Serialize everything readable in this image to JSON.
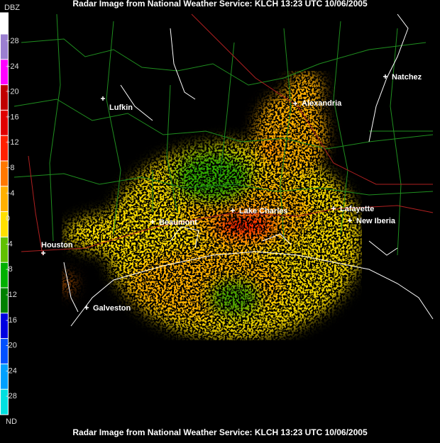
{
  "header": {
    "title": "Radar Image from National Weather Service: KLCH   13:23 UTC  10/06/2005"
  },
  "footer": {
    "title": "Radar Image from National Weather Service: KLCH   13:23 UTC  10/06/2005"
  },
  "scale": {
    "unit": "DBZ",
    "entries": [
      {
        "label": "+28",
        "color": "#9b7fd0"
      },
      {
        "label": "+24",
        "color": "#ff00ff"
      },
      {
        "label": "+20",
        "color": "#c00000"
      },
      {
        "label": "+16",
        "color": "#e00000"
      },
      {
        "label": "+12",
        "color": "#ff2000"
      },
      {
        "label": "+8",
        "color": "#ff7800"
      },
      {
        "label": "+4",
        "color": "#ffb000"
      },
      {
        "label": "0",
        "color": "#ffe000"
      },
      {
        "label": "-4",
        "color": "#60c000"
      },
      {
        "label": "-8",
        "color": "#00b000"
      },
      {
        "label": "-12",
        "color": "#008000"
      },
      {
        "label": "-16",
        "color": "#0000e0"
      },
      {
        "label": "-20",
        "color": "#0050ff"
      },
      {
        "label": "-24",
        "color": "#00a0ff"
      },
      {
        "label": "-28",
        "color": "#00e0e0"
      },
      {
        "label": "ND",
        "color": "#000000"
      }
    ]
  },
  "cities": [
    {
      "label": "Natchez"
    },
    {
      "label": "Alexandria"
    },
    {
      "label": "Lufkin"
    },
    {
      "label": "Lake Charles"
    },
    {
      "label": "Lafayette"
    },
    {
      "label": "New Iberia"
    },
    {
      "label": "Beaumont"
    },
    {
      "label": "Houston"
    },
    {
      "label": "Galveston"
    }
  ]
}
